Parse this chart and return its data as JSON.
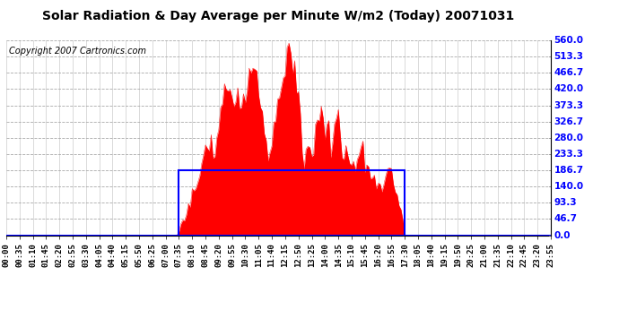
{
  "title": "Solar Radiation & Day Average per Minute W/m2 (Today) 20071031",
  "copyright": "Copyright 2007 Cartronics.com",
  "bg_color": "#ffffff",
  "plot_bg_color": "#ffffff",
  "fill_color": "#ff0000",
  "line_color": "#ff0000",
  "blue_line_color": "#0000ff",
  "grid_h_color": "#aaaaaa",
  "grid_v_color": "#cccccc",
  "y_ticks": [
    0.0,
    46.7,
    93.3,
    140.0,
    186.7,
    233.3,
    280.0,
    326.7,
    373.3,
    420.0,
    466.7,
    513.3,
    560.0
  ],
  "y_max": 560.0,
  "y_min": 0.0,
  "day_avg": 186.7,
  "n_points": 288,
  "rise_idx": 91,
  "set_idx": 210,
  "tick_step": 7,
  "title_fontsize": 10,
  "copyright_fontsize": 7,
  "ytick_fontsize": 7.5,
  "xtick_fontsize": 6.5
}
